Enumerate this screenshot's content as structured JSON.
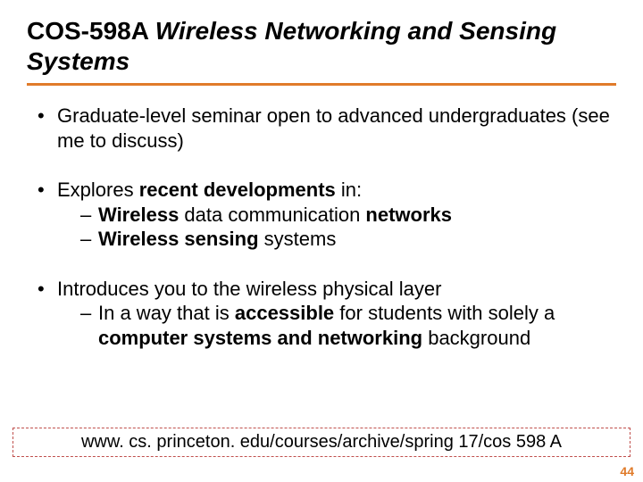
{
  "title": {
    "course_code": "COS-598A",
    "course_name": "Wireless Networking and Sensing Systems"
  },
  "bullets": {
    "b1": "Graduate-level seminar open to advanced undergraduates (see me to discuss)",
    "b2_pre": "Explores ",
    "b2_bold": "recent developments",
    "b2_post": " in:",
    "b2s1_b1": "Wireless",
    "b2s1_mid": " data communication ",
    "b2s1_b2": "networks",
    "b2s2_b1": "Wireless sensing",
    "b2s2_post": " systems",
    "b3": "Introduces you to the wireless physical layer",
    "b3s1_pre": "In a way that is ",
    "b3s1_b1": "accessible",
    "b3s1_mid": " for students with solely a ",
    "b3s1_b2": "computer systems and networking",
    "b3s1_post": " background"
  },
  "url": "www. cs. princeton. edu/courses/archive/spring 17/cos 598 A",
  "pagenum": "44",
  "colors": {
    "accent": "#e07b2a",
    "box_border": "#c0504d"
  }
}
